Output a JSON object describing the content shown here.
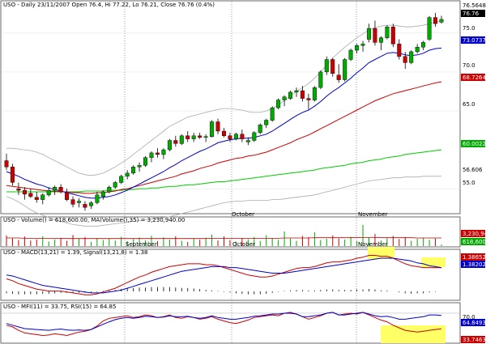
{
  "header": {
    "title": "USO - Daily 23/11/2007 Open 76.4, Hi 77.22, Lo 76.21, Close 76.76 (0.4%)"
  },
  "price_panel": {
    "y_ticks": [
      "75.0",
      "70.0",
      "65.0",
      "55.0"
    ],
    "tags": [
      {
        "text": "76.5648",
        "bg": "#ffffff",
        "fg": "#000000"
      },
      {
        "text": "76.76",
        "bg": "#000000",
        "fg": "#ffffff"
      },
      {
        "text": "73.0737",
        "bg": "#0000cc",
        "fg": "#ffffff"
      },
      {
        "text": "68.7264",
        "bg": "#cc0000",
        "fg": "#ffffff"
      },
      {
        "text": "60.0022",
        "bg": "#00aa00",
        "fg": "#ffffff"
      },
      {
        "text": "56.606",
        "bg": "#ffffff",
        "fg": "#000000"
      }
    ]
  },
  "volume_panel": {
    "title": "USO - Volume() = 618,600.00, MA(Volume(),35) = 3,230,940.00",
    "tags": [
      {
        "text": "3,230,940",
        "bg": "#cc0000",
        "fg": "#ffffff"
      },
      {
        "text": "618,600",
        "bg": "#00aa00",
        "fg": "#ffffff"
      }
    ]
  },
  "macd_panel": {
    "title": "USO - MACD(13,21) = 1.39, Signal(13,21,8) = 1.38",
    "tags": [
      {
        "text": "1.38652",
        "bg": "#cc0000",
        "fg": "#ffffff"
      },
      {
        "text": "1.38202",
        "bg": "#0000cc",
        "fg": "#ffffff"
      }
    ]
  },
  "rsi_panel": {
    "title": "USO - MFI(11) = 33.75, RSI(15) = 64.85",
    "tags": [
      {
        "text": "70.0",
        "bg": "#ffffff",
        "fg": "#000000"
      },
      {
        "text": "64.8493",
        "bg": "#0000cc",
        "fg": "#ffffff"
      },
      {
        "text": "33.7463",
        "bg": "#cc0000",
        "fg": "#ffffff"
      }
    ]
  },
  "x_labels": [
    "September",
    "October",
    "November"
  ],
  "colors": {
    "up": "#00aa00",
    "down": "#cc0000",
    "ma_short": "#0000cc",
    "ma_mid": "#cc0000",
    "ma_long": "#00cc00",
    "band": "#aaaaaa",
    "highlight": "#ffff66",
    "grid": "#e6e6e6"
  },
  "chart_data": {
    "type": "candlestick",
    "ylim": [
      52,
      78
    ],
    "candles": [
      [
        58.6,
        59.5,
        57.4,
        57.8
      ],
      [
        57.8,
        58.2,
        55.4,
        55.8
      ],
      [
        55.0,
        55.8,
        54.2,
        54.8
      ],
      [
        54.8,
        55.2,
        53.6,
        54.3
      ],
      [
        54.4,
        55.0,
        53.8,
        54.0
      ],
      [
        53.9,
        54.6,
        53.2,
        53.6
      ],
      [
        53.6,
        54.4,
        53.0,
        54.2
      ],
      [
        54.2,
        55.2,
        54.0,
        54.8
      ],
      [
        54.8,
        55.4,
        54.2,
        55.2
      ],
      [
        55.2,
        55.6,
        54.4,
        54.6
      ],
      [
        54.5,
        55.0,
        53.4,
        53.6
      ],
      [
        53.6,
        54.0,
        52.6,
        53.0
      ],
      [
        53.2,
        53.8,
        52.6,
        53.4
      ],
      [
        53.0,
        53.4,
        52.2,
        52.6
      ],
      [
        52.8,
        53.4,
        52.4,
        53.2
      ],
      [
        53.2,
        54.6,
        53.0,
        54.2
      ],
      [
        54.0,
        54.8,
        53.6,
        54.6
      ],
      [
        54.6,
        55.4,
        54.4,
        55.2
      ],
      [
        55.2,
        56.0,
        55.0,
        55.8
      ],
      [
        55.8,
        56.8,
        55.6,
        56.6
      ],
      [
        56.6,
        57.4,
        56.2,
        57.0
      ],
      [
        57.0,
        58.0,
        56.8,
        57.8
      ],
      [
        57.8,
        58.4,
        57.2,
        58.0
      ],
      [
        58.0,
        59.2,
        57.8,
        59.0
      ],
      [
        59.0,
        59.8,
        58.4,
        59.6
      ],
      [
        59.6,
        60.2,
        59.0,
        59.4
      ],
      [
        59.4,
        60.2,
        58.8,
        60.0
      ],
      [
        60.0,
        61.4,
        59.8,
        61.2
      ],
      [
        61.2,
        61.8,
        60.4,
        60.8
      ],
      [
        60.8,
        62.0,
        60.6,
        61.8
      ],
      [
        61.8,
        62.4,
        61.0,
        61.4
      ],
      [
        61.4,
        62.2,
        61.0,
        61.8
      ],
      [
        61.8,
        62.2,
        61.4,
        61.6
      ],
      [
        61.6,
        62.0,
        61.0,
        61.7
      ],
      [
        61.7,
        63.8,
        61.6,
        63.6
      ],
      [
        63.6,
        64.0,
        62.0,
        62.4
      ],
      [
        62.4,
        62.8,
        61.6,
        61.8
      ],
      [
        61.8,
        62.2,
        61.0,
        61.4
      ],
      [
        61.4,
        62.2,
        61.2,
        62.0
      ],
      [
        62.0,
        62.6,
        61.0,
        61.4
      ],
      [
        61.0,
        61.6,
        60.6,
        61.2
      ],
      [
        61.2,
        62.4,
        61.0,
        62.2
      ],
      [
        62.2,
        63.4,
        62.0,
        63.2
      ],
      [
        63.2,
        64.0,
        62.8,
        63.8
      ],
      [
        63.8,
        65.6,
        63.6,
        65.4
      ],
      [
        65.4,
        66.6,
        65.2,
        66.4
      ],
      [
        66.4,
        67.0,
        65.6,
        66.8
      ],
      [
        66.6,
        67.6,
        66.4,
        67.4
      ],
      [
        67.4,
        68.0,
        66.8,
        67.6
      ],
      [
        67.6,
        68.2,
        66.2,
        66.6
      ],
      [
        66.6,
        67.2,
        65.2,
        66.4
      ],
      [
        66.4,
        68.2,
        66.2,
        68.0
      ],
      [
        68.0,
        70.2,
        67.8,
        70.0
      ],
      [
        70.0,
        72.0,
        69.6,
        71.6
      ],
      [
        71.6,
        71.8,
        69.4,
        69.8
      ],
      [
        69.6,
        71.0,
        68.6,
        69.0
      ],
      [
        69.0,
        71.8,
        68.8,
        71.6
      ],
      [
        71.6,
        73.0,
        71.4,
        72.8
      ],
      [
        72.8,
        73.6,
        72.4,
        73.4
      ],
      [
        73.4,
        74.0,
        72.6,
        73.6
      ],
      [
        74.2,
        76.2,
        73.8,
        75.6
      ],
      [
        75.6,
        76.6,
        73.4,
        73.8
      ],
      [
        73.8,
        74.6,
        72.8,
        74.4
      ],
      [
        74.4,
        76.0,
        74.2,
        75.8
      ],
      [
        75.8,
        76.2,
        73.2,
        73.6
      ],
      [
        73.6,
        74.2,
        71.6,
        72.0
      ],
      [
        72.0,
        72.6,
        70.4,
        71.2
      ],
      [
        71.2,
        72.8,
        71.0,
        72.6
      ],
      [
        72.6,
        73.6,
        72.4,
        73.2
      ],
      [
        73.2,
        74.0,
        72.8,
        73.8
      ],
      [
        74.2,
        77.2,
        74.0,
        77.0
      ],
      [
        77.0,
        77.6,
        75.8,
        76.2
      ],
      [
        76.4,
        77.22,
        76.21,
        76.76
      ]
    ],
    "ma_short": [
      57.2,
      56.9,
      56.6,
      56.2,
      55.9,
      55.6,
      55.4,
      55.1,
      54.9,
      54.7,
      54.5,
      54.3,
      54.1,
      53.9,
      53.8,
      53.8,
      53.9,
      54.0,
      54.2,
      54.5,
      54.8,
      55.2,
      55.6,
      56.0,
      56.4,
      56.8,
      57.2,
      57.7,
      58.1,
      58.6,
      59.0,
      59.4,
      59.8,
      60.1,
      60.5,
      60.9,
      61.1,
      61.3,
      61.4,
      61.5,
      61.5,
      61.6,
      61.8,
      62.0,
      62.4,
      62.9,
      63.4,
      63.9,
      64.4,
      64.8,
      65.1,
      65.6,
      66.2,
      66.9,
      67.5,
      68.0,
      68.6,
      69.2,
      69.9,
      70.5,
      71.2,
      71.6,
      72.0,
      72.4,
      72.5,
      72.4,
      72.2,
      72.1,
      72.2,
      72.4,
      72.8,
      73.0,
      73.07
    ],
    "ma_mid": [
      55.4,
      55.3,
      55.2,
      55.1,
      55.0,
      54.9,
      54.8,
      54.7,
      54.7,
      54.6,
      54.6,
      54.5,
      54.5,
      54.4,
      54.4,
      54.5,
      54.5,
      54.6,
      54.7,
      54.9,
      55.0,
      55.2,
      55.4,
      55.6,
      55.8,
      56.0,
      56.2,
      56.4,
      56.6,
      56.9,
      57.1,
      57.3,
      57.6,
      57.8,
      58.0,
      58.3,
      58.5,
      58.7,
      58.9,
      59.0,
      59.2,
      59.3,
      59.5,
      59.7,
      60.0,
      60.3,
      60.6,
      60.9,
      61.3,
      61.6,
      61.9,
      62.3,
      62.7,
      63.1,
      63.5,
      63.9,
      64.3,
      64.7,
      65.1,
      65.5,
      65.9,
      66.3,
      66.6,
      66.9,
      67.2,
      67.4,
      67.6,
      67.8,
      68.0,
      68.2,
      68.4,
      68.6,
      68.73
    ],
    "ma_long": [
      54.6,
      54.6,
      54.6,
      54.6,
      54.6,
      54.6,
      54.6,
      54.6,
      54.6,
      54.6,
      54.6,
      54.6,
      54.6,
      54.7,
      54.7,
      54.7,
      54.7,
      54.8,
      54.8,
      54.8,
      54.9,
      54.9,
      55.0,
      55.0,
      55.1,
      55.1,
      55.2,
      55.3,
      55.3,
      55.4,
      55.5,
      55.5,
      55.6,
      55.7,
      55.8,
      55.9,
      55.9,
      56.0,
      56.1,
      56.2,
      56.3,
      56.4,
      56.5,
      56.6,
      56.7,
      56.8,
      56.9,
      57.0,
      57.1,
      57.2,
      57.3,
      57.4,
      57.6,
      57.7,
      57.8,
      57.9,
      58.0,
      58.2,
      58.3,
      58.4,
      58.6,
      58.7,
      58.8,
      59.0,
      59.1,
      59.2,
      59.4,
      59.5,
      59.6,
      59.7,
      59.8,
      59.9,
      60.0
    ],
    "band_upper": [
      60.2,
      60.2,
      60.1,
      60.0,
      59.9,
      59.7,
      59.4,
      59.0,
      58.6,
      58.2,
      57.8,
      57.4,
      57.0,
      56.8,
      56.7,
      56.8,
      57.0,
      57.4,
      57.8,
      58.3,
      58.8,
      59.4,
      60.0,
      60.6,
      61.2,
      61.8,
      62.4,
      63.0,
      63.4,
      63.8,
      64.2,
      64.4,
      64.6,
      64.8,
      65.0,
      65.2,
      65.3,
      65.3,
      65.2,
      65.1,
      64.9,
      64.8,
      64.8,
      65.0,
      65.3,
      65.8,
      66.3,
      66.9,
      67.5,
      68.0,
      68.5,
      69.2,
      70.0,
      70.9,
      71.8,
      72.5,
      73.2,
      73.8,
      74.4,
      74.9,
      75.4,
      75.7,
      75.9,
      76.0,
      76.0,
      75.9,
      75.8,
      75.8,
      75.9,
      76.0,
      76.2,
      76.4,
      76.56
    ],
    "band_lower": [
      54.0,
      53.7,
      53.3,
      52.8,
      52.3,
      51.9,
      51.6,
      51.3,
      51.0,
      50.8,
      50.6,
      50.4,
      50.3,
      50.2,
      50.2,
      50.2,
      50.3,
      50.4,
      50.5,
      50.6,
      50.7,
      50.8,
      50.9,
      51.0,
      51.1,
      51.2,
      51.3,
      51.4,
      51.6,
      51.8,
      52.0,
      52.2,
      52.4,
      52.6,
      52.8,
      53.0,
      53.2,
      53.3,
      53.4,
      53.4,
      53.5,
      53.5,
      53.5,
      53.5,
      53.6,
      53.6,
      53.7,
      53.8,
      53.9,
      54.0,
      54.1,
      54.2,
      54.4,
      54.6,
      54.8,
      55.0,
      55.2,
      55.4,
      55.6,
      55.8,
      56.0,
      56.1,
      56.2,
      56.3,
      56.4,
      56.4,
      56.5,
      56.5,
      56.5,
      56.6,
      56.6,
      56.6,
      56.61
    ],
    "volume": [
      4.2,
      3.1,
      2.4,
      3.8,
      2.2,
      2.6,
      3.9,
      1.8,
      2.7,
      3.3,
      2.1,
      4.4,
      2.9,
      3.6,
      1.7,
      3.2,
      2.4,
      3.0,
      2.2,
      3.7,
      1.9,
      2.8,
      3.4,
      2.3,
      4.1,
      2.0,
      3.5,
      2.6,
      3.9,
      2.1,
      1.6,
      3.0,
      2.5,
      3.3,
      4.6,
      2.2,
      3.8,
      2.4,
      1.8,
      3.1,
      2.7,
      3.6,
      2.0,
      4.3,
      3.2,
      2.5,
      5.8,
      3.0,
      2.1,
      4.0,
      3.5,
      5.5,
      2.4,
      2.9,
      4.2,
      3.0,
      2.6,
      3.7,
      2.0,
      8.4,
      3.3,
      4.8,
      2.2,
      3.1,
      4.0,
      2.8,
      3.6,
      2.1,
      2.9,
      3.4,
      2.5,
      3.0,
      0.62
    ],
    "volume_ma": [
      3.2,
      3.2,
      3.2,
      3.1,
      3.1,
      3.1,
      3.1,
      3.1,
      3.1,
      3.1,
      3.0,
      3.0,
      3.0,
      3.0,
      3.0,
      3.0,
      3.0,
      3.0,
      3.0,
      3.0,
      3.0,
      3.0,
      3.0,
      3.0,
      3.0,
      3.0,
      3.0,
      3.0,
      3.0,
      3.0,
      3.0,
      3.0,
      3.0,
      3.0,
      3.1,
      3.1,
      3.1,
      3.1,
      3.1,
      3.1,
      3.1,
      3.1,
      3.1,
      3.1,
      3.1,
      3.1,
      3.2,
      3.2,
      3.2,
      3.2,
      3.2,
      3.3,
      3.3,
      3.3,
      3.3,
      3.3,
      3.3,
      3.3,
      3.3,
      3.4,
      3.4,
      3.4,
      3.3,
      3.3,
      3.3,
      3.3,
      3.3,
      3.3,
      3.2,
      3.2,
      3.2,
      3.2,
      3.23
    ],
    "macd": [
      0.2,
      0.0,
      -0.3,
      -0.5,
      -0.7,
      -0.9,
      -1.0,
      -1.1,
      -1.1,
      -1.1,
      -1.2,
      -1.3,
      -1.4,
      -1.5,
      -1.5,
      -1.4,
      -1.2,
      -1.0,
      -0.8,
      -0.5,
      -0.2,
      0.1,
      0.4,
      0.6,
      0.9,
      1.1,
      1.3,
      1.5,
      1.6,
      1.7,
      1.8,
      1.8,
      1.8,
      1.7,
      1.7,
      1.6,
      1.4,
      1.2,
      1.0,
      0.8,
      0.6,
      0.5,
      0.4,
      0.4,
      0.5,
      0.7,
      0.9,
      1.1,
      1.3,
      1.4,
      1.4,
      1.5,
      1.7,
      1.9,
      2.0,
      2.0,
      2.1,
      2.2,
      2.4,
      2.5,
      2.7,
      2.7,
      2.6,
      2.6,
      2.4,
      2.1,
      1.8,
      1.6,
      1.5,
      1.4,
      1.4,
      1.4,
      1.39
    ],
    "signal": [
      0.6,
      0.5,
      0.3,
      0.1,
      -0.1,
      -0.3,
      -0.5,
      -0.6,
      -0.7,
      -0.8,
      -0.9,
      -1.0,
      -1.1,
      -1.2,
      -1.3,
      -1.3,
      -1.3,
      -1.2,
      -1.1,
      -1.0,
      -0.8,
      -0.6,
      -0.4,
      -0.2,
      0.0,
      0.2,
      0.4,
      0.6,
      0.8,
      1.0,
      1.1,
      1.2,
      1.3,
      1.4,
      1.5,
      1.5,
      1.5,
      1.4,
      1.4,
      1.3,
      1.2,
      1.1,
      1.0,
      0.9,
      0.8,
      0.8,
      0.8,
      0.9,
      1.0,
      1.1,
      1.2,
      1.3,
      1.4,
      1.5,
      1.6,
      1.7,
      1.8,
      1.9,
      2.0,
      2.1,
      2.2,
      2.3,
      2.4,
      2.4,
      2.4,
      2.3,
      2.2,
      2.1,
      1.9,
      1.8,
      1.6,
      1.5,
      1.38
    ],
    "mfi": [
      42,
      38,
      30,
      24,
      22,
      20,
      18,
      19,
      22,
      20,
      18,
      22,
      26,
      28,
      32,
      40,
      52,
      58,
      60,
      62,
      64,
      60,
      62,
      66,
      64,
      60,
      62,
      66,
      60,
      58,
      62,
      60,
      56,
      58,
      62,
      56,
      52,
      48,
      46,
      50,
      54,
      60,
      62,
      64,
      66,
      64,
      70,
      72,
      68,
      62,
      56,
      60,
      64,
      70,
      72,
      66,
      68,
      70,
      68,
      72,
      66,
      60,
      54,
      50,
      42,
      36,
      30,
      28,
      26,
      28,
      30,
      32,
      33.75
    ],
    "rsi": [
      46,
      42,
      38,
      34,
      33,
      32,
      31,
      30,
      32,
      33,
      31,
      30,
      31,
      30,
      32,
      38,
      44,
      50,
      55,
      58,
      60,
      58,
      60,
      63,
      62,
      60,
      61,
      64,
      62,
      62,
      63,
      60,
      58,
      60,
      64,
      60,
      58,
      56,
      56,
      58,
      60,
      63,
      64,
      66,
      68,
      68,
      70,
      70,
      68,
      62,
      62,
      64,
      66,
      70,
      72,
      66,
      66,
      68,
      70,
      72,
      68,
      64,
      62,
      63,
      60,
      56,
      56,
      58,
      60,
      62,
      66,
      66,
      64.85
    ]
  }
}
